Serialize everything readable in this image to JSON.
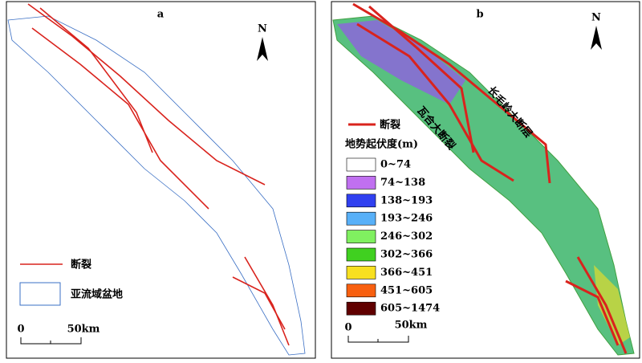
{
  "panels": [
    {
      "label": "a",
      "north": "N",
      "legend": [
        "断裂",
        "亚流域盆地"
      ],
      "scale": [
        "0",
        "50km"
      ]
    },
    {
      "label": "b",
      "north": "N",
      "annotations": [
        "长毛岭大断层",
        "瓦合大断裂"
      ],
      "fault_label": "断裂",
      "legend_title": "地势起伏度(m)",
      "classes": [
        {
          "label": "0~74",
          "color": "#ffffff"
        },
        {
          "label": "74~138",
          "color": "#c070f0"
        },
        {
          "label": "138~193",
          "color": "#3040f0"
        },
        {
          "label": "193~246",
          "color": "#58b0f8"
        },
        {
          "label": "246~302",
          "color": "#80f060"
        },
        {
          "label": "302~366",
          "color": "#40d020"
        },
        {
          "label": "366~451",
          "color": "#f8e020"
        },
        {
          "label": "451~605",
          "color": "#f86010"
        },
        {
          "label": "605~1474",
          "color": "#600000"
        }
      ],
      "scale": [
        "0",
        "50km"
      ]
    }
  ]
}
